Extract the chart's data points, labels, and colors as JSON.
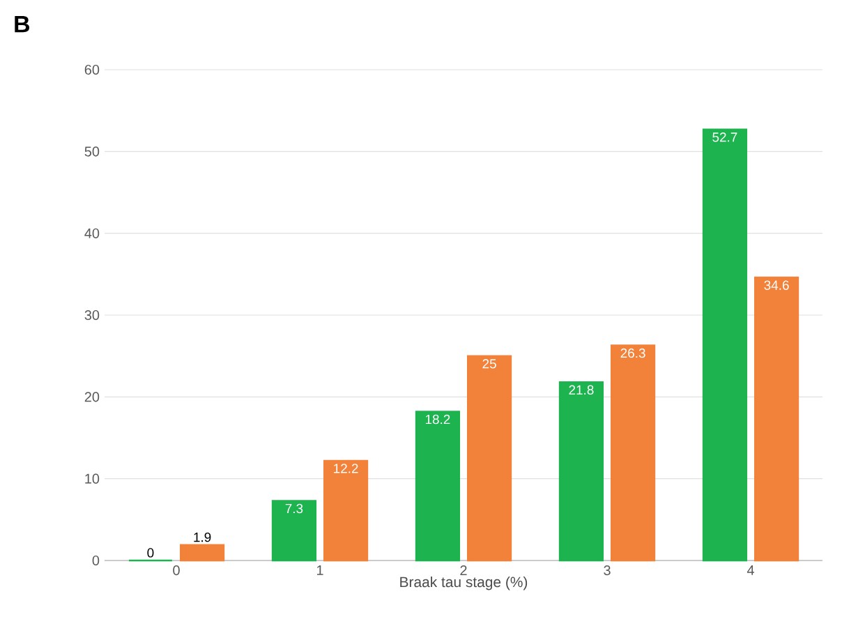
{
  "chart_data": {
    "type": "bar",
    "title": "B",
    "xlabel": "Braak tau stage (%)",
    "categories": [
      "0",
      "1",
      "2",
      "3",
      "4"
    ],
    "series": [
      {
        "color": "#1db34f",
        "values": [
          0,
          7.3,
          18.2,
          21.8,
          52.7
        ]
      },
      {
        "color": "#f2813a",
        "values": [
          1.9,
          12.2,
          25,
          26.3,
          34.6
        ]
      }
    ],
    "ylim": [
      0,
      60
    ],
    "yticks": [
      0,
      10,
      20,
      30,
      40,
      50,
      60
    ],
    "grid": "y",
    "data_labels": true
  }
}
